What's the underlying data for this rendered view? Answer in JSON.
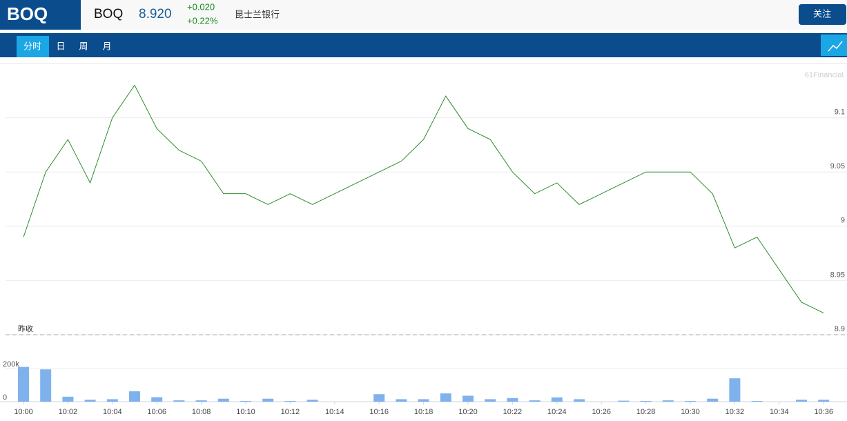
{
  "header": {
    "logo": "BOQ",
    "ticker": "BOQ",
    "price": "8.920",
    "change": "+0.020",
    "change_pct": "+0.22%",
    "name": "昆士兰银行",
    "follow_button": "关注"
  },
  "tabs": [
    "分时",
    "日",
    "周",
    "月"
  ],
  "watermark": "61Financial",
  "chart_data": {
    "type": "line",
    "categories": [
      "10:00",
      null,
      "10:02",
      null,
      "10:04",
      null,
      "10:06",
      null,
      "10:08",
      null,
      "10:10",
      null,
      "10:12",
      null,
      "10:14",
      null,
      "10:16",
      null,
      "10:18",
      null,
      "10:20",
      null,
      "10:22",
      null,
      "10:24",
      null,
      "10:26",
      null,
      "10:28",
      null,
      "10:30",
      null,
      "10:32",
      null,
      "10:34",
      null,
      "10:36"
    ],
    "series": [
      {
        "color": "#2e8b2e",
        "values": [
          8.99,
          9.05,
          9.08,
          9.04,
          9.1,
          9.13,
          9.09,
          9.07,
          9.06,
          9.03,
          9.03,
          9.02,
          9.03,
          9.02,
          9.03,
          9.04,
          9.05,
          9.06,
          9.08,
          9.12,
          9.09,
          9.08,
          9.05,
          9.03,
          9.04,
          9.02,
          9.03,
          9.04,
          9.05,
          9.05,
          9.05,
          9.03,
          8.98,
          8.99,
          8.96,
          8.93,
          8.92
        ]
      }
    ],
    "ylim": [
      8.9,
      9.15
    ],
    "yticks": [
      8.9,
      8.95,
      9,
      9.05,
      9.1
    ],
    "grid": true,
    "prev_close": 8.9,
    "prev_close_label": "昨收",
    "volume": {
      "type": "bar",
      "color": "#7fb2ec",
      "values": [
        210000,
        195000,
        30000,
        12000,
        15000,
        63000,
        27000,
        8000,
        8000,
        18000,
        4000,
        18000,
        4000,
        12000,
        0,
        0,
        45000,
        15000,
        15000,
        50000,
        36000,
        15000,
        22000,
        8000,
        26000,
        15000,
        0,
        6000,
        4000,
        8000,
        4000,
        18000,
        141000,
        4000,
        0,
        12000,
        12000
      ],
      "ylim": [
        0,
        400000
      ],
      "yticks": [
        0,
        {
          "value": 200000,
          "label": "200k"
        }
      ]
    }
  }
}
